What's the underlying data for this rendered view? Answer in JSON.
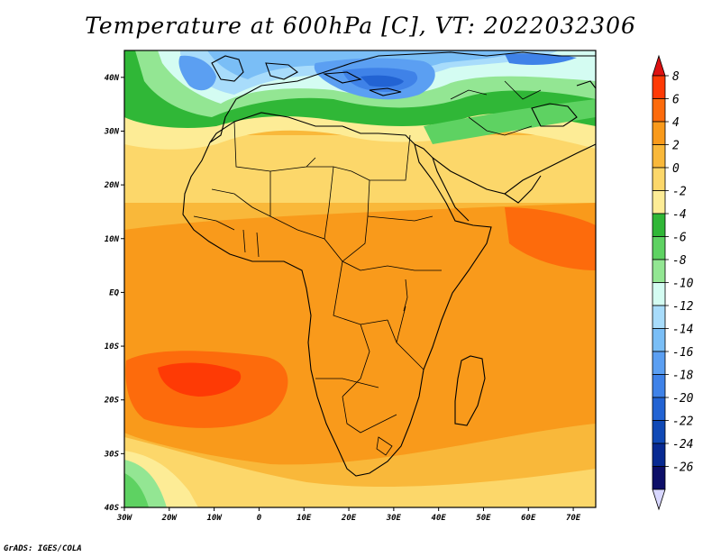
{
  "title": "Temperature at 600hPa [C], VT: 2022032306",
  "credit": "GrADS: IGES/COLA",
  "map": {
    "lat_labels": [
      {
        "label": "40N",
        "lat": 40
      },
      {
        "label": "30N",
        "lat": 30
      },
      {
        "label": "20N",
        "lat": 20
      },
      {
        "label": "10N",
        "lat": 10
      },
      {
        "label": "EQ",
        "lat": 0
      },
      {
        "label": "10S",
        "lat": -10
      },
      {
        "label": "20S",
        "lat": -20
      },
      {
        "label": "30S",
        "lat": -30
      },
      {
        "label": "40S",
        "lat": -40
      }
    ],
    "lon_labels": [
      {
        "label": "30W",
        "lon": -30
      },
      {
        "label": "20W",
        "lon": -20
      },
      {
        "label": "10W",
        "lon": -10
      },
      {
        "label": "0",
        "lon": 0
      },
      {
        "label": "10E",
        "lon": 10
      },
      {
        "label": "20E",
        "lon": 20
      },
      {
        "label": "30E",
        "lon": 30
      },
      {
        "label": "40E",
        "lon": 40
      },
      {
        "label": "50E",
        "lon": 50
      },
      {
        "label": "60E",
        "lon": 60
      },
      {
        "label": "70E",
        "lon": 70
      }
    ]
  },
  "colorbar": {
    "labels": [
      "8",
      "6",
      "4",
      "2",
      "0",
      "-2",
      "-4",
      "-6",
      "-8",
      "-10",
      "-12",
      "-14",
      "-16",
      "-18",
      "-20",
      "-22",
      "-24",
      "-26"
    ],
    "colors": [
      "#fe3a05",
      "#fd6b0c",
      "#f99a1b",
      "#f9b83a",
      "#fcd76a",
      "#fdec96",
      "#30b737",
      "#5ed262",
      "#93e693",
      "#d4fcf2",
      "#a8dcfb",
      "#7abef6",
      "#5b9ff2",
      "#3f82e8",
      "#2263d3",
      "#1049b6",
      "#082a92",
      "#0d0f68"
    ],
    "top_cap_color": "#dd1111",
    "bottom_cap_color": "#d8d7ff"
  }
}
